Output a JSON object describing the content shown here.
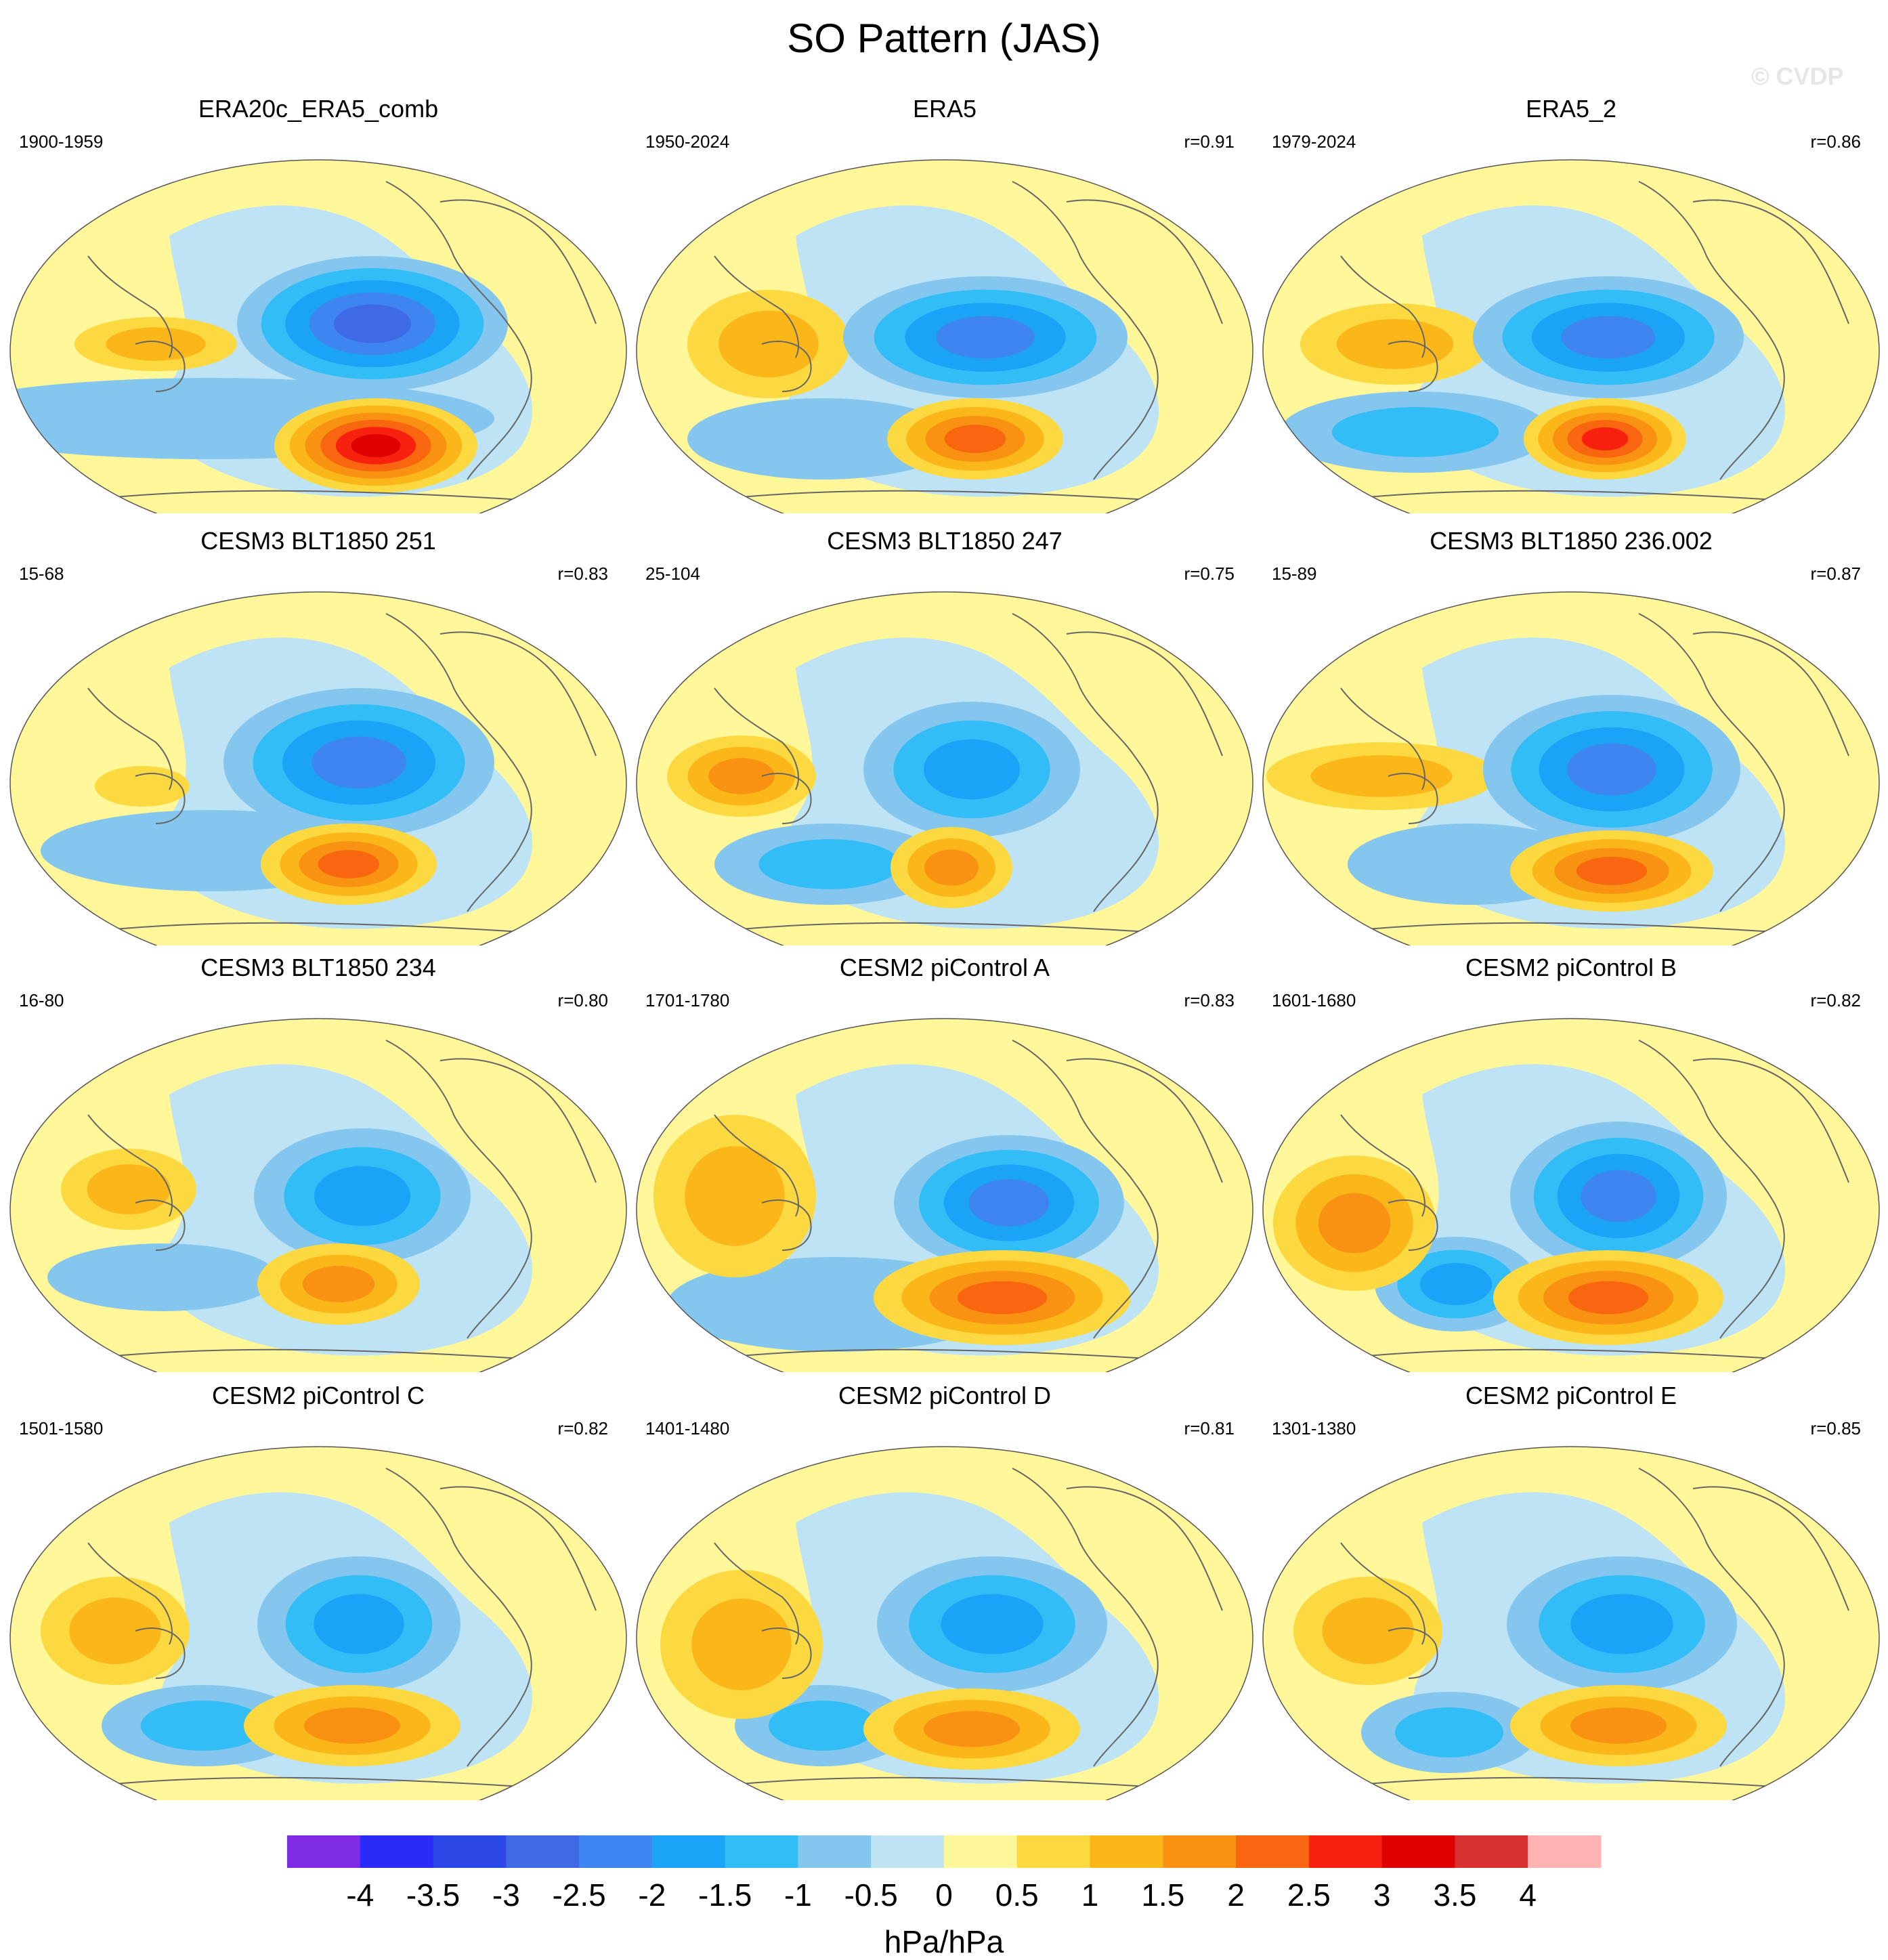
{
  "title": "SO Pattern (JAS)",
  "watermark": "© CVDP",
  "colors": {
    "bg": "#ffffff",
    "ocean_default": "#fff799",
    "coast": "#666666",
    "levels": [
      "#7f2be6",
      "#2b2bf7",
      "#2b47e6",
      "#3f6ae6",
      "#3f85f2",
      "#1aa3f7",
      "#33bdf7",
      "#85c6ee",
      "#bde3f4",
      "#fff799",
      "#fcd940",
      "#fbb61a",
      "#f99212",
      "#f86610",
      "#f8200f",
      "#e00000",
      "#d93030",
      "#ffb3b3"
    ]
  },
  "panels": [
    {
      "title": "ERA20c_ERA5_comb",
      "period": "1900-1959",
      "corr": ""
    },
    {
      "title": "ERA5",
      "period": "1950-2024",
      "corr": "r=0.91"
    },
    {
      "title": "ERA5_2",
      "period": "1979-2024",
      "corr": "r=0.86"
    },
    {
      "title": "CESM3 BLT1850 251",
      "period": "15-68",
      "corr": "r=0.83"
    },
    {
      "title": "CESM3 BLT1850 247",
      "period": "25-104",
      "corr": "r=0.75"
    },
    {
      "title": "CESM3 BLT1850 236.002",
      "period": "15-89",
      "corr": "r=0.87"
    },
    {
      "title": "CESM3 BLT1850 234",
      "period": "16-80",
      "corr": "r=0.80"
    },
    {
      "title": "CESM2 piControl A",
      "period": "1701-1780",
      "corr": "r=0.83"
    },
    {
      "title": "CESM2 piControl B",
      "period": "1601-1680",
      "corr": "r=0.82"
    },
    {
      "title": "CESM2 piControl C",
      "period": "1501-1580",
      "corr": "r=0.82"
    },
    {
      "title": "CESM2 piControl D",
      "period": "1401-1480",
      "corr": "r=0.81"
    },
    {
      "title": "CESM2 piControl E",
      "period": "1301-1380",
      "corr": "r=0.85"
    }
  ],
  "colorbar": {
    "labels": [
      "-4",
      "-3.5",
      "-3",
      "-2.5",
      "-2",
      "-1.5",
      "-1",
      "-0.5",
      "0",
      "0.5",
      "1",
      "1.5",
      "2",
      "2.5",
      "3",
      "3.5",
      "4"
    ],
    "unit": "hPa/hPa"
  }
}
